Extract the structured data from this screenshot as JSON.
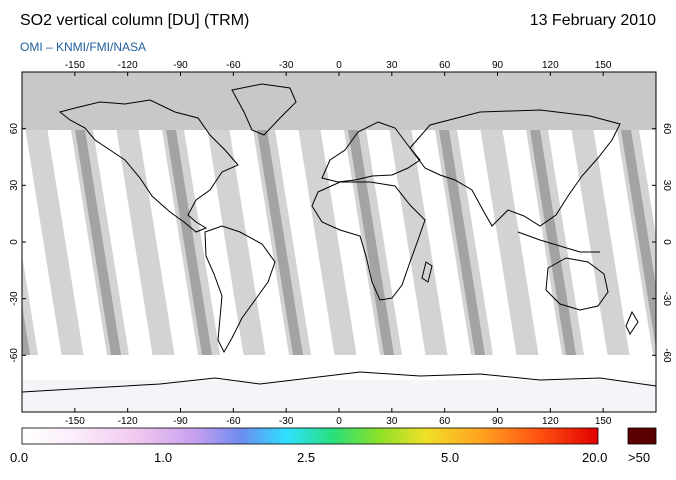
{
  "header": {
    "title": "SO2 vertical column [DU] (TRM)",
    "date": "13 February 2010",
    "credit": "OMI  –  KNMI/FMI/NASA"
  },
  "map": {
    "lon_ticks": [
      "-150",
      "-120",
      "-90",
      "-60",
      "-30",
      "0",
      "30",
      "60",
      "90",
      "120",
      "150"
    ],
    "lon_values": [
      -150,
      -120,
      -90,
      -60,
      -30,
      0,
      30,
      60,
      90,
      120,
      150
    ],
    "lat_ticks": [
      "60",
      "30",
      "0",
      "-30",
      "-60"
    ],
    "lat_values": [
      60,
      30,
      0,
      -30,
      -60
    ],
    "colors": {
      "no_data": "#c8c8c8",
      "swath_edge": "#d3d3d3",
      "swath_dark": "#a3a3a3",
      "coast": "#000000"
    }
  },
  "colorbar": {
    "labels": [
      "0.0",
      "1.0",
      "2.5",
      "5.0",
      "20.0"
    ],
    "overflow_label": ">50",
    "overflow_color": "#5a0000"
  }
}
